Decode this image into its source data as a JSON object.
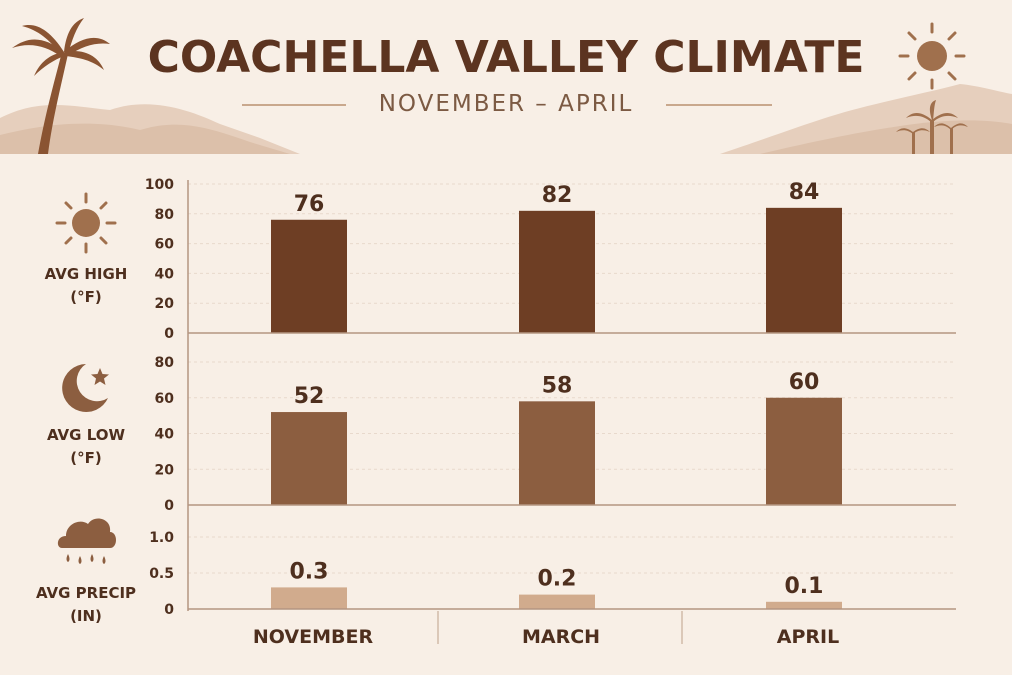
{
  "header": {
    "title": "COACHELLA VALLEY CLIMATE",
    "subtitle": "NOVEMBER – APRIL"
  },
  "rows": [
    {
      "label": "AVG HIGH",
      "unit": "(°F)",
      "icon": "sun-icon"
    },
    {
      "label": "AVG LOW",
      "unit": "(°F)",
      "icon": "moon-star-icon"
    },
    {
      "label": "AVG PRECIP",
      "unit": "(IN)",
      "icon": "rain-cloud-icon"
    }
  ],
  "colors": {
    "background": "#f8efe6",
    "high_bar": "#6e3e24",
    "low_bar": "#8c5e40",
    "precip_bar": "#d1ab8d",
    "text_dark": "#4e2f1e",
    "decor": "#c9a88d"
  },
  "chart_data": [
    {
      "type": "bar",
      "title": "AVG HIGH (°F)",
      "categories": [
        "NOVEMBER",
        "MARCH",
        "APRIL"
      ],
      "values": [
        76,
        82,
        84
      ],
      "data_labels": [
        "76",
        "82",
        "84"
      ],
      "ylim": [
        0,
        100
      ],
      "yticks": [
        "0",
        "20",
        "40",
        "60",
        "80",
        "100"
      ],
      "grid": true
    },
    {
      "type": "bar",
      "title": "AVG LOW (°F)",
      "categories": [
        "NOVEMBER",
        "MARCH",
        "APRIL"
      ],
      "values": [
        52,
        58,
        60
      ],
      "data_labels": [
        "52",
        "58",
        "60"
      ],
      "ylim": [
        0,
        80
      ],
      "yticks": [
        "0",
        "20",
        "40",
        "60",
        "80"
      ],
      "grid": true
    },
    {
      "type": "bar",
      "title": "AVG PRECIP (IN)",
      "categories": [
        "NOVEMBER",
        "MARCH",
        "APRIL"
      ],
      "values": [
        0.3,
        0.2,
        0.1
      ],
      "data_labels": [
        "0.3",
        "0.2",
        "0.1"
      ],
      "ylim": [
        0,
        1.0
      ],
      "yticks": [
        "0",
        "0.5",
        "1.0"
      ],
      "grid": true
    }
  ]
}
